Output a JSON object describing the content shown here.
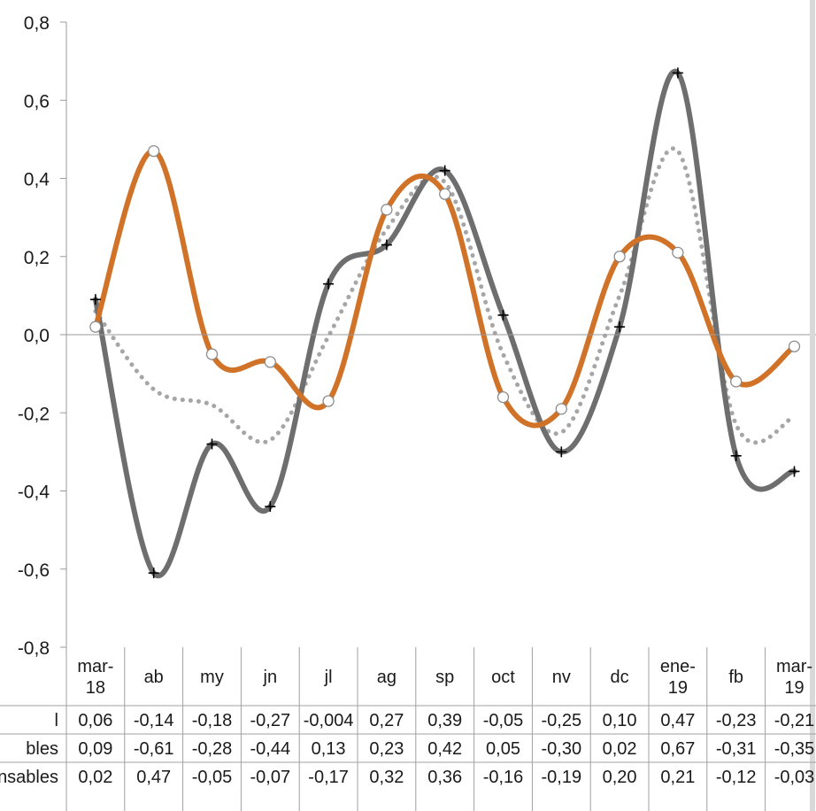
{
  "chart_data": {
    "type": "line",
    "title": "",
    "xlabel": "",
    "ylabel": "",
    "ylim": [
      -0.8,
      0.8
    ],
    "yticks": [
      "0,8",
      "0,6",
      "0,4",
      "0,2",
      "0,0",
      "-0,2",
      "-0,4",
      "-0,6",
      "-0,8"
    ],
    "ytick_values": [
      0.8,
      0.6,
      0.4,
      0.2,
      0.0,
      -0.2,
      -0.4,
      -0.6,
      -0.8
    ],
    "categories": [
      [
        "mar-",
        "18"
      ],
      [
        "ab"
      ],
      [
        "my"
      ],
      [
        "jn"
      ],
      [
        "jl"
      ],
      [
        "ag"
      ],
      [
        "sp"
      ],
      [
        "oct"
      ],
      [
        "nv"
      ],
      [
        "dc"
      ],
      [
        "ene-",
        "19"
      ],
      [
        "fb"
      ],
      [
        "mar-",
        "19"
      ]
    ],
    "grid": false,
    "series": [
      {
        "name": "l",
        "color": "#a6a6a6",
        "style": "dotted",
        "values": [
          0.06,
          -0.14,
          -0.18,
          -0.27,
          -0.004,
          0.27,
          0.39,
          -0.05,
          -0.25,
          0.1,
          0.47,
          -0.23,
          -0.21
        ],
        "labels": [
          "0,06",
          "-0,14",
          "-0,18",
          "-0,27",
          "-0,004",
          "0,27",
          "0,39",
          "-0,05",
          "-0,25",
          "0,10",
          "0,47",
          "-0,23",
          "-0,21"
        ]
      },
      {
        "name": "bles",
        "color": "#6e6e6e",
        "style": "solid",
        "marker": "plus",
        "values": [
          0.09,
          -0.61,
          -0.28,
          -0.44,
          0.13,
          0.23,
          0.42,
          0.05,
          -0.3,
          0.02,
          0.67,
          -0.31,
          -0.35
        ],
        "labels": [
          "0,09",
          "-0,61",
          "-0,28",
          "-0,44",
          "0,13",
          "0,23",
          "0,42",
          "0,05",
          "-0,30",
          "0,02",
          "0,67",
          "-0,31",
          "-0,35"
        ]
      },
      {
        "name": "nsables",
        "color": "#d07227",
        "style": "solid",
        "marker": "circle",
        "values": [
          0.02,
          0.47,
          -0.05,
          -0.07,
          -0.17,
          0.32,
          0.36,
          -0.16,
          -0.19,
          0.2,
          0.21,
          -0.12,
          -0.03
        ],
        "labels": [
          "0,02",
          "0,47",
          "-0,05",
          "-0,07",
          "-0,17",
          "0,32",
          "0,36",
          "-0,16",
          "-0,19",
          "0,20",
          "0,21",
          "-0,12",
          "-0,03"
        ]
      }
    ]
  }
}
